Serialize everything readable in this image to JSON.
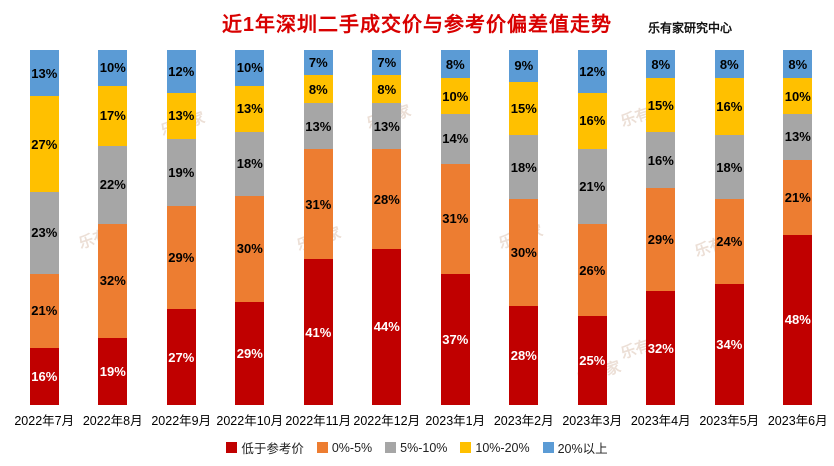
{
  "header": {
    "title": "近1年深圳二手成交价与参考价偏差值走势",
    "credit": "乐有家研究中心",
    "title_color": "#d80000"
  },
  "watermark": {
    "text": "乐有家"
  },
  "chart_data": {
    "type": "bar",
    "stacked": true,
    "percent_stacked": true,
    "title": "近1年深圳二手成交价与参考价偏差值走势",
    "xlabel": "",
    "ylabel": "",
    "ylim": [
      0,
      100
    ],
    "grid": false,
    "legend_position": "bottom",
    "value_suffix": "%",
    "categories": [
      "2022年7月",
      "2022年8月",
      "2022年9月",
      "2022年10月",
      "2022年11月",
      "2022年12月",
      "2023年1月",
      "2023年2月",
      "2023年3月",
      "2023年4月",
      "2023年5月",
      "2023年6月"
    ],
    "series": [
      {
        "name": "低于参考价",
        "color": "#c00000",
        "label_color": "#ffffff",
        "values": [
          16,
          19,
          27,
          29,
          41,
          44,
          37,
          28,
          25,
          32,
          34,
          48
        ]
      },
      {
        "name": "0%-5%",
        "color": "#ed7d31",
        "label_color": "#000000",
        "values": [
          21,
          32,
          29,
          30,
          31,
          28,
          31,
          30,
          26,
          29,
          24,
          21
        ]
      },
      {
        "name": "5%-10%",
        "color": "#a6a6a6",
        "label_color": "#000000",
        "values": [
          23,
          22,
          19,
          18,
          13,
          13,
          14,
          18,
          21,
          16,
          18,
          13
        ]
      },
      {
        "name": "10%-20%",
        "color": "#ffc000",
        "label_color": "#000000",
        "values": [
          27,
          17,
          13,
          13,
          8,
          8,
          10,
          15,
          16,
          15,
          16,
          10
        ]
      },
      {
        "name": "20%以上",
        "color": "#5b9bd5",
        "label_color": "#000000",
        "values": [
          13,
          10,
          12,
          10,
          7,
          7,
          8,
          9,
          12,
          8,
          8,
          8
        ]
      }
    ]
  }
}
